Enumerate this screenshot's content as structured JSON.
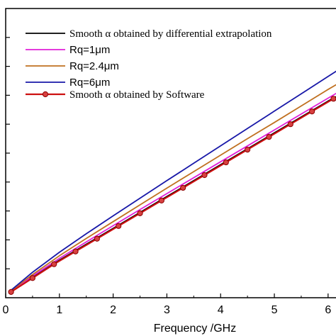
{
  "chart_data": {
    "type": "line",
    "xlabel": "Frequency /GHz",
    "ylabel": "",
    "xlim": [
      0,
      6.2
    ],
    "ylim": [
      0,
      1
    ],
    "x_ticks": [
      "0",
      "1",
      "2",
      "3",
      "4",
      "5",
      "6"
    ],
    "y_ticks": [
      "",
      "",
      "",
      "",
      "",
      "",
      "",
      "",
      "",
      ""
    ],
    "grid": false,
    "legend_position": "top-left",
    "series": [
      {
        "name": "Smooth α obtained by differential extrapolation",
        "color": "#000000",
        "marker": "none",
        "x": [
          0.1,
          0.5,
          1.0,
          1.5,
          2.0,
          2.5,
          3.0,
          3.5,
          4.0,
          4.5,
          5.0,
          5.5,
          6.0,
          6.2
        ],
        "y": [
          0.02,
          0.07,
          0.13,
          0.185,
          0.24,
          0.295,
          0.35,
          0.405,
          0.46,
          0.515,
          0.57,
          0.625,
          0.68,
          0.7
        ]
      },
      {
        "name": "Rq=1μm",
        "color": "#e020d8",
        "marker": "none",
        "x": [
          0.1,
          0.5,
          1.0,
          1.5,
          2.0,
          2.5,
          3.0,
          3.5,
          4.0,
          4.5,
          5.0,
          5.5,
          6.0,
          6.2
        ],
        "y": [
          0.022,
          0.075,
          0.136,
          0.193,
          0.249,
          0.305,
          0.36,
          0.415,
          0.47,
          0.525,
          0.58,
          0.635,
          0.69,
          0.712
        ]
      },
      {
        "name": "Rq=2.4μm",
        "color": "#c07020",
        "marker": "none",
        "x": [
          0.1,
          0.5,
          1.0,
          1.5,
          2.0,
          2.5,
          3.0,
          3.5,
          4.0,
          4.5,
          5.0,
          5.5,
          6.0,
          6.2
        ],
        "y": [
          0.024,
          0.08,
          0.145,
          0.205,
          0.263,
          0.321,
          0.379,
          0.436,
          0.493,
          0.55,
          0.606,
          0.663,
          0.72,
          0.742
        ]
      },
      {
        "name": "Rq=6μm",
        "color": "#1818a8",
        "marker": "none",
        "x": [
          0.1,
          0.5,
          1.0,
          1.5,
          2.0,
          2.5,
          3.0,
          3.5,
          4.0,
          4.5,
          5.0,
          5.5,
          6.0,
          6.2
        ],
        "y": [
          0.026,
          0.088,
          0.157,
          0.221,
          0.283,
          0.344,
          0.405,
          0.465,
          0.525,
          0.585,
          0.645,
          0.705,
          0.765,
          0.789
        ]
      },
      {
        "name": "Smooth α obtained by Software",
        "color": "#cc1010",
        "marker": "circle",
        "x": [
          0.1,
          0.5,
          0.9,
          1.3,
          1.7,
          2.1,
          2.5,
          2.9,
          3.3,
          3.7,
          4.1,
          4.5,
          4.9,
          5.3,
          5.7,
          6.1
        ],
        "y": [
          0.02,
          0.068,
          0.116,
          0.16,
          0.204,
          0.248,
          0.292,
          0.336,
          0.38,
          0.424,
          0.468,
          0.512,
          0.556,
          0.6,
          0.644,
          0.688
        ]
      }
    ]
  }
}
